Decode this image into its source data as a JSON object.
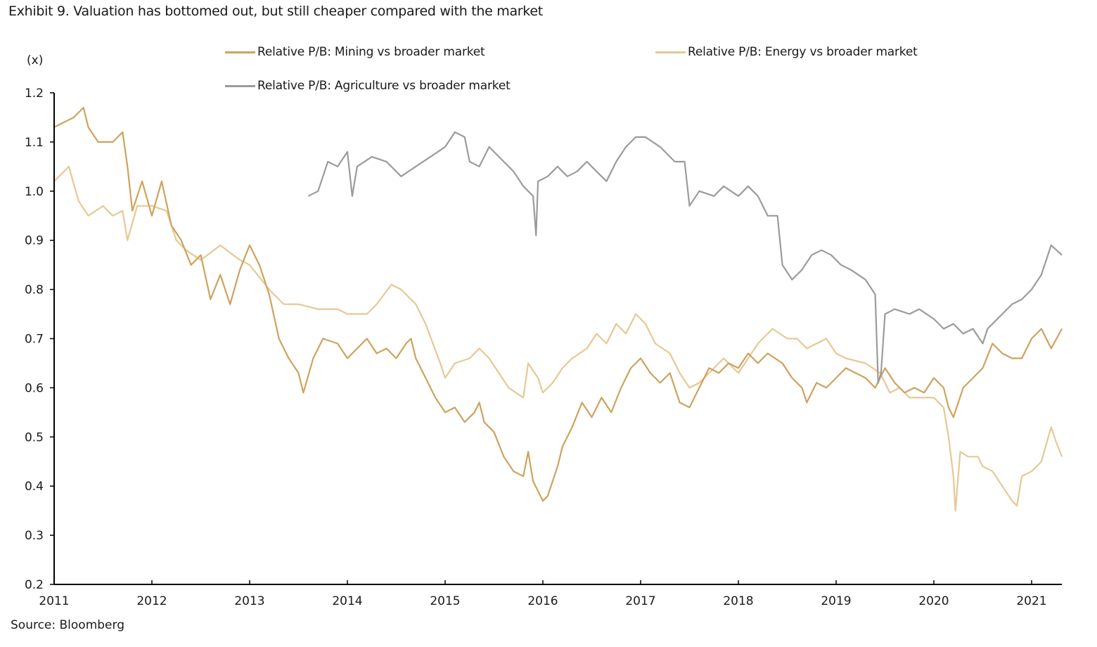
{
  "title": "Exhibit 9. Valuation has bottomed out, but still cheaper compared with the market",
  "source": "Source: Bloomberg",
  "chart_data": {
    "type": "line",
    "title": "Exhibit 9. Valuation has bottomed out, but still cheaper compared with the market",
    "ylabel": "(x)",
    "xlabel": "",
    "ylim": [
      0.2,
      1.2
    ],
    "xlim": [
      2011,
      2021.31
    ],
    "yticks": [
      "0.2",
      "0.3",
      "0.4",
      "0.5",
      "0.6",
      "0.7",
      "0.8",
      "0.9",
      "1.0",
      "1.1",
      "1.2"
    ],
    "xticks": [
      "2011",
      "2012",
      "2013",
      "2014",
      "2015",
      "2016",
      "2017",
      "2018",
      "2019",
      "2020",
      "2021"
    ],
    "grid": false,
    "legend_position": "top",
    "series": [
      {
        "name": "Relative P/B: Mining vs broader market",
        "color": "#CFA25C",
        "x": [
          2011.0,
          2011.1,
          2011.2,
          2011.3,
          2011.35,
          2011.45,
          2011.6,
          2011.7,
          2011.75,
          2011.8,
          2011.9,
          2012.0,
          2012.1,
          2012.2,
          2012.3,
          2012.4,
          2012.5,
          2012.6,
          2012.7,
          2012.8,
          2012.9,
          2013.0,
          2013.1,
          2013.2,
          2013.3,
          2013.4,
          2013.5,
          2013.55,
          2013.65,
          2013.75,
          2013.9,
          2014.0,
          2014.1,
          2014.2,
          2014.3,
          2014.4,
          2014.5,
          2014.6,
          2014.65,
          2014.7,
          2014.8,
          2014.9,
          2015.0,
          2015.1,
          2015.2,
          2015.3,
          2015.35,
          2015.4,
          2015.5,
          2015.6,
          2015.7,
          2015.8,
          2015.85,
          2015.9,
          2016.0,
          2016.05,
          2016.15,
          2016.2,
          2016.3,
          2016.4,
          2016.5,
          2016.6,
          2016.7,
          2016.8,
          2016.9,
          2017.0,
          2017.1,
          2017.2,
          2017.3,
          2017.4,
          2017.5,
          2017.6,
          2017.7,
          2017.8,
          2017.9,
          2018.0,
          2018.1,
          2018.2,
          2018.3,
          2018.45,
          2018.55,
          2018.65,
          2018.7,
          2018.8,
          2018.9,
          2019.0,
          2019.1,
          2019.2,
          2019.3,
          2019.4,
          2019.5,
          2019.6,
          2019.7,
          2019.8,
          2019.9,
          2020.0,
          2020.1,
          2020.15,
          2020.2,
          2020.3,
          2020.4,
          2020.5,
          2020.6,
          2020.7,
          2020.8,
          2020.9,
          2021.0,
          2021.1,
          2021.2,
          2021.31
        ],
        "values": [
          1.13,
          1.14,
          1.15,
          1.17,
          1.13,
          1.1,
          1.1,
          1.12,
          1.05,
          0.96,
          1.02,
          0.95,
          1.02,
          0.93,
          0.9,
          0.85,
          0.87,
          0.78,
          0.83,
          0.77,
          0.84,
          0.89,
          0.85,
          0.79,
          0.7,
          0.66,
          0.63,
          0.59,
          0.66,
          0.7,
          0.69,
          0.66,
          0.68,
          0.7,
          0.67,
          0.68,
          0.66,
          0.69,
          0.7,
          0.66,
          0.62,
          0.58,
          0.55,
          0.56,
          0.53,
          0.55,
          0.57,
          0.53,
          0.51,
          0.46,
          0.43,
          0.42,
          0.47,
          0.41,
          0.37,
          0.38,
          0.44,
          0.48,
          0.52,
          0.57,
          0.54,
          0.58,
          0.55,
          0.6,
          0.64,
          0.66,
          0.63,
          0.61,
          0.63,
          0.57,
          0.56,
          0.6,
          0.64,
          0.63,
          0.65,
          0.64,
          0.67,
          0.65,
          0.67,
          0.65,
          0.62,
          0.6,
          0.57,
          0.61,
          0.6,
          0.62,
          0.64,
          0.63,
          0.62,
          0.6,
          0.64,
          0.61,
          0.59,
          0.6,
          0.59,
          0.62,
          0.6,
          0.56,
          0.54,
          0.6,
          0.62,
          0.64,
          0.69,
          0.67,
          0.66,
          0.66,
          0.7,
          0.72,
          0.68,
          0.72
        ]
      },
      {
        "name": "Relative P/B: Energy vs broader market",
        "color": "#E6C894",
        "x": [
          2011.0,
          2011.15,
          2011.25,
          2011.35,
          2011.5,
          2011.6,
          2011.7,
          2011.75,
          2011.85,
          2012.0,
          2012.15,
          2012.25,
          2012.35,
          2012.5,
          2012.7,
          2012.9,
          2013.0,
          2013.2,
          2013.35,
          2013.5,
          2013.7,
          2013.9,
          2014.0,
          2014.2,
          2014.3,
          2014.45,
          2014.55,
          2014.7,
          2014.8,
          2014.95,
          2015.0,
          2015.1,
          2015.25,
          2015.35,
          2015.45,
          2015.55,
          2015.65,
          2015.8,
          2015.85,
          2015.95,
          2016.0,
          2016.1,
          2016.2,
          2016.3,
          2016.45,
          2016.55,
          2016.65,
          2016.75,
          2016.85,
          2016.95,
          2017.05,
          2017.15,
          2017.3,
          2017.4,
          2017.5,
          2017.6,
          2017.75,
          2017.85,
          2018.0,
          2018.1,
          2018.2,
          2018.35,
          2018.5,
          2018.6,
          2018.7,
          2018.8,
          2018.9,
          2019.0,
          2019.1,
          2019.3,
          2019.45,
          2019.55,
          2019.65,
          2019.75,
          2019.85,
          2020.0,
          2020.1,
          2020.15,
          2020.2,
          2020.22,
          2020.27,
          2020.35,
          2020.45,
          2020.5,
          2020.6,
          2020.7,
          2020.8,
          2020.85,
          2020.9,
          2021.0,
          2021.1,
          2021.2,
          2021.25,
          2021.31
        ],
        "values": [
          1.02,
          1.05,
          0.98,
          0.95,
          0.97,
          0.95,
          0.96,
          0.9,
          0.97,
          0.97,
          0.96,
          0.9,
          0.88,
          0.86,
          0.89,
          0.86,
          0.85,
          0.8,
          0.77,
          0.77,
          0.76,
          0.76,
          0.75,
          0.75,
          0.77,
          0.81,
          0.8,
          0.77,
          0.73,
          0.65,
          0.62,
          0.65,
          0.66,
          0.68,
          0.66,
          0.63,
          0.6,
          0.58,
          0.65,
          0.62,
          0.59,
          0.61,
          0.64,
          0.66,
          0.68,
          0.71,
          0.69,
          0.73,
          0.71,
          0.75,
          0.73,
          0.69,
          0.67,
          0.63,
          0.6,
          0.61,
          0.64,
          0.66,
          0.63,
          0.66,
          0.69,
          0.72,
          0.7,
          0.7,
          0.68,
          0.69,
          0.7,
          0.67,
          0.66,
          0.65,
          0.63,
          0.59,
          0.6,
          0.58,
          0.58,
          0.58,
          0.56,
          0.5,
          0.42,
          0.35,
          0.47,
          0.46,
          0.46,
          0.44,
          0.43,
          0.4,
          0.37,
          0.36,
          0.42,
          0.43,
          0.45,
          0.52,
          0.49,
          0.46
        ]
      },
      {
        "name": "Relative P/B: Agriculture vs broader market",
        "color": "#9B9B9B",
        "x": [
          2013.6,
          2013.7,
          2013.8,
          2013.9,
          2014.0,
          2014.05,
          2014.1,
          2014.25,
          2014.4,
          2014.55,
          2014.7,
          2014.85,
          2015.0,
          2015.1,
          2015.2,
          2015.25,
          2015.35,
          2015.45,
          2015.6,
          2015.7,
          2015.8,
          2015.9,
          2015.93,
          2015.95,
          2016.05,
          2016.15,
          2016.25,
          2016.35,
          2016.45,
          2016.55,
          2016.65,
          2016.75,
          2016.85,
          2016.95,
          2017.05,
          2017.2,
          2017.35,
          2017.45,
          2017.5,
          2017.6,
          2017.75,
          2017.85,
          2018.0,
          2018.1,
          2018.2,
          2018.3,
          2018.4,
          2018.45,
          2018.55,
          2018.65,
          2018.75,
          2018.85,
          2018.95,
          2019.05,
          2019.15,
          2019.3,
          2019.4,
          2019.43,
          2019.46,
          2019.5,
          2019.6,
          2019.75,
          2019.85,
          2020.0,
          2020.1,
          2020.2,
          2020.3,
          2020.4,
          2020.5,
          2020.55,
          2020.7,
          2020.8,
          2020.9,
          2021.0,
          2021.1,
          2021.2,
          2021.31
        ],
        "values": [
          0.99,
          1.0,
          1.06,
          1.05,
          1.08,
          0.99,
          1.05,
          1.07,
          1.06,
          1.03,
          1.05,
          1.07,
          1.09,
          1.12,
          1.11,
          1.06,
          1.05,
          1.09,
          1.06,
          1.04,
          1.01,
          0.99,
          0.91,
          1.02,
          1.03,
          1.05,
          1.03,
          1.04,
          1.06,
          1.04,
          1.02,
          1.06,
          1.09,
          1.11,
          1.11,
          1.09,
          1.06,
          1.06,
          0.97,
          1.0,
          0.99,
          1.01,
          0.99,
          1.01,
          0.99,
          0.95,
          0.95,
          0.85,
          0.82,
          0.84,
          0.87,
          0.88,
          0.87,
          0.85,
          0.84,
          0.82,
          0.79,
          0.61,
          0.63,
          0.75,
          0.76,
          0.75,
          0.76,
          0.74,
          0.72,
          0.73,
          0.71,
          0.72,
          0.69,
          0.72,
          0.75,
          0.77,
          0.78,
          0.8,
          0.83,
          0.89,
          0.87
        ]
      }
    ]
  }
}
